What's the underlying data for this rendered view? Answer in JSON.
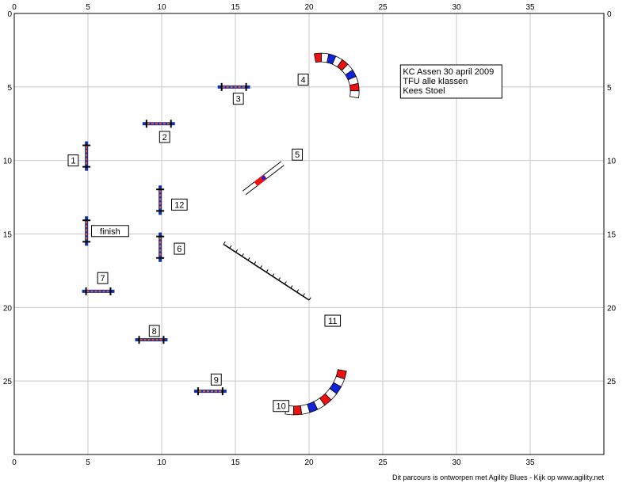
{
  "grid": {
    "x_min": 0,
    "x_max": 40,
    "y_min": 0,
    "y_max": 30,
    "major_step": 5,
    "x_ticks": [
      0,
      5,
      10,
      15,
      20,
      25,
      30,
      35
    ],
    "y_ticks": [
      0,
      5,
      10,
      15,
      20,
      25
    ],
    "colors": {
      "grid": "#c8c8c8",
      "border": "#000000"
    }
  },
  "info_box": {
    "lines": [
      "KC Assen 30 april 2009",
      "TFU alle klassen",
      "Kees Stoel"
    ],
    "x": 26.2,
    "y": 3.5
  },
  "hurdles": [
    {
      "id": "1",
      "label": "1",
      "x": 4.9,
      "y": 9.7,
      "orient": "v",
      "len": 2.0,
      "label_x": 4.0,
      "label_y": 10.0
    },
    {
      "id": "2",
      "label": "2",
      "x": 9.8,
      "y": 7.5,
      "orient": "h",
      "len": 2.2,
      "label_x": 10.2,
      "label_y": 8.4
    },
    {
      "id": "3",
      "label": "3",
      "x": 14.9,
      "y": 5.0,
      "orient": "h",
      "len": 2.2,
      "label_x": 15.2,
      "label_y": 5.8
    },
    {
      "id": "12",
      "label": "12",
      "x": 9.9,
      "y": 12.7,
      "orient": "v",
      "len": 2.0,
      "label_x": 11.2,
      "label_y": 13.0
    },
    {
      "id": "finish",
      "label": "finish",
      "x": 4.9,
      "y": 14.8,
      "orient": "v",
      "len": 2.0,
      "label_x": 6.5,
      "label_y": 14.8
    },
    {
      "id": "6",
      "label": "6",
      "x": 9.9,
      "y": 15.9,
      "orient": "v",
      "len": 2.0,
      "label_x": 11.2,
      "label_y": 16.0
    },
    {
      "id": "7",
      "label": "7",
      "x": 5.7,
      "y": 18.9,
      "orient": "h",
      "len": 2.2,
      "label_x": 6.0,
      "label_y": 18.0
    },
    {
      "id": "8",
      "label": "8",
      "x": 9.3,
      "y": 22.2,
      "orient": "h",
      "len": 2.2,
      "label_x": 9.5,
      "label_y": 21.6
    },
    {
      "id": "9",
      "label": "9",
      "x": 13.3,
      "y": 25.7,
      "orient": "h",
      "len": 2.2,
      "label_x": 13.7,
      "label_y": 24.9
    }
  ],
  "tunnels": [
    {
      "id": "4",
      "label": "4",
      "cx": 20.8,
      "cy": 5.3,
      "r": 2.3,
      "a0": -100,
      "a1": 10,
      "label_x": 19.6,
      "label_y": 4.5
    },
    {
      "id": "10",
      "label": "10",
      "cx": 19.0,
      "cy": 23.7,
      "r": 3.3,
      "a0": 10,
      "a1": 100,
      "label_x": 18.1,
      "label_y": 26.7
    }
  ],
  "walk_obstacle": {
    "id": "5",
    "label": "5",
    "x1": 15.6,
    "y1": 12.2,
    "x2": 18.2,
    "y2": 10.2,
    "label_x": 19.2,
    "label_y": 9.6
  },
  "dog_walk": {
    "id": "11",
    "label": "11",
    "x1": 14.2,
    "y1": 15.7,
    "x2": 20.0,
    "y2": 19.5,
    "label_x": 21.6,
    "label_y": 20.9
  },
  "footer": "Dit parcours is ontworpen met Agility Blues - Kijk op www.agility.net"
}
